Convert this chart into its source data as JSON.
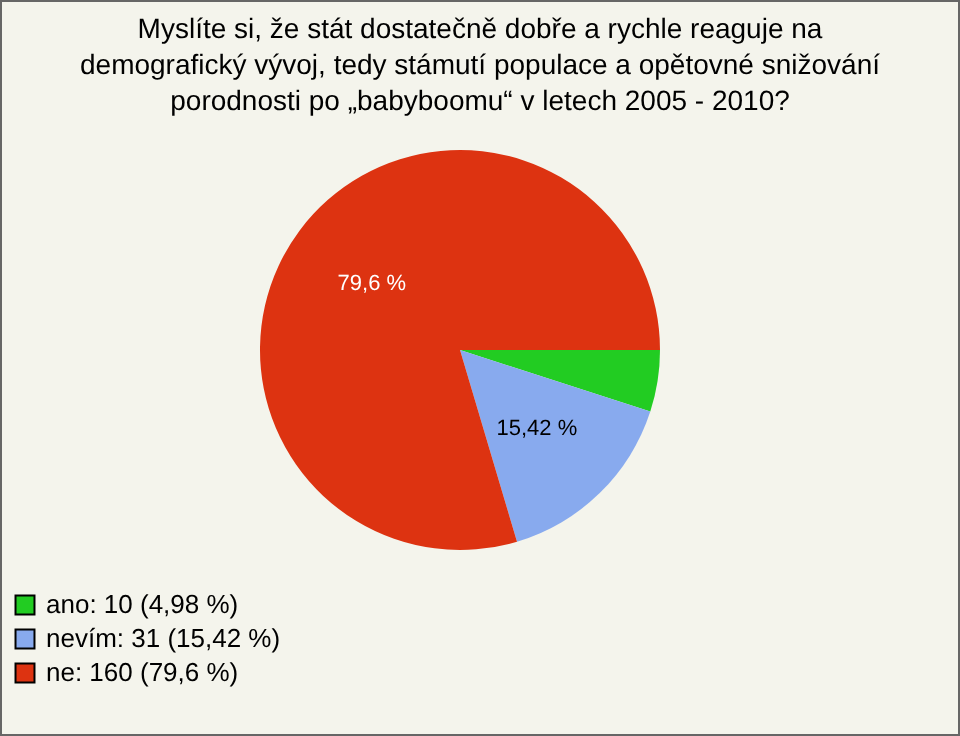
{
  "chart_data": {
    "type": "pie",
    "title": "Myslíte si, že stát dostatečně dobře a rychle reaguje na demografický vývoj, tedy stámutí populace a opětovné snižování porodnosti po „babyboomu“ v letech 2005 - 2010?",
    "categories": [
      "ano: 10 (4,98 %)",
      "nevím: 31 (15,42 %)",
      "ne: 160 (79,6 %)"
    ],
    "values": [
      4.98,
      15.42,
      79.6
    ],
    "colors": [
      "#22cc22",
      "#88aaee",
      "#dd3311"
    ],
    "value_labels": [
      null,
      "15,42 %",
      "79,6 %"
    ],
    "legend": "bottom left"
  }
}
